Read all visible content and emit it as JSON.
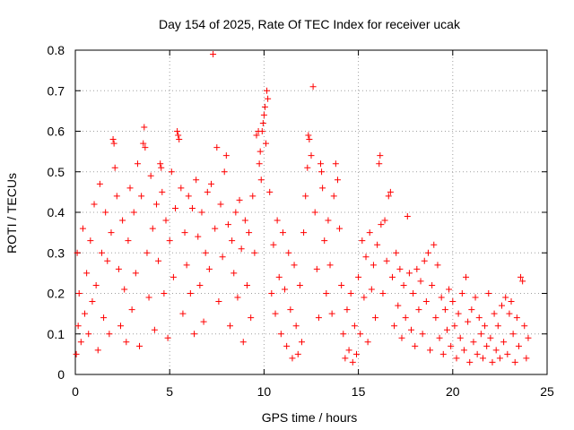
{
  "chart_data": {
    "type": "scatter",
    "title": "Day 154 of 2025, Rate Of TEC Index for receiver ucak",
    "xlabel": "GPS time / hours",
    "ylabel": "ROTI / TECUs",
    "xlim": [
      0,
      25
    ],
    "ylim": [
      0,
      0.8
    ],
    "xticks": [
      0,
      5,
      10,
      15,
      20,
      25
    ],
    "xtick_labels": [
      "0",
      "5",
      "10",
      "15",
      "20",
      "25"
    ],
    "yticks": [
      0,
      0.1,
      0.2,
      0.3,
      0.4,
      0.5,
      0.6,
      0.7,
      0.8
    ],
    "ytick_labels": [
      "0",
      "0.1",
      "0.2",
      "0.3",
      "0.4",
      "0.5",
      "0.6",
      "0.7",
      "0.8"
    ],
    "grid": true,
    "marker": "+",
    "color": "#ff0000",
    "series": [
      {
        "name": "ROTI",
        "points": [
          [
            0.05,
            0.05
          ],
          [
            0.1,
            0.3
          ],
          [
            0.15,
            0.12
          ],
          [
            0.2,
            0.2
          ],
          [
            0.3,
            0.08
          ],
          [
            0.4,
            0.36
          ],
          [
            0.5,
            0.15
          ],
          [
            0.6,
            0.25
          ],
          [
            0.7,
            0.1
          ],
          [
            0.8,
            0.33
          ],
          [
            0.9,
            0.18
          ],
          [
            1.0,
            0.42
          ],
          [
            1.1,
            0.22
          ],
          [
            1.2,
            0.06
          ],
          [
            1.3,
            0.47
          ],
          [
            1.4,
            0.3
          ],
          [
            1.5,
            0.14
          ],
          [
            1.6,
            0.4
          ],
          [
            1.7,
            0.28
          ],
          [
            1.8,
            0.1
          ],
          [
            1.9,
            0.35
          ],
          [
            2.0,
            0.58
          ],
          [
            2.05,
            0.57
          ],
          [
            2.1,
            0.51
          ],
          [
            2.2,
            0.44
          ],
          [
            2.3,
            0.26
          ],
          [
            2.4,
            0.12
          ],
          [
            2.5,
            0.38
          ],
          [
            2.6,
            0.21
          ],
          [
            2.7,
            0.08
          ],
          [
            2.8,
            0.33
          ],
          [
            2.9,
            0.46
          ],
          [
            3.0,
            0.16
          ],
          [
            3.1,
            0.4
          ],
          [
            3.2,
            0.25
          ],
          [
            3.3,
            0.52
          ],
          [
            3.4,
            0.07
          ],
          [
            3.5,
            0.44
          ],
          [
            3.6,
            0.57
          ],
          [
            3.65,
            0.61
          ],
          [
            3.7,
            0.56
          ],
          [
            3.8,
            0.3
          ],
          [
            3.9,
            0.19
          ],
          [
            4.0,
            0.49
          ],
          [
            4.1,
            0.36
          ],
          [
            4.2,
            0.11
          ],
          [
            4.3,
            0.42
          ],
          [
            4.4,
            0.28
          ],
          [
            4.5,
            0.52
          ],
          [
            4.55,
            0.51
          ],
          [
            4.6,
            0.45
          ],
          [
            4.7,
            0.2
          ],
          [
            4.8,
            0.38
          ],
          [
            4.9,
            0.09
          ],
          [
            5.0,
            0.33
          ],
          [
            5.1,
            0.5
          ],
          [
            5.2,
            0.24
          ],
          [
            5.3,
            0.41
          ],
          [
            5.4,
            0.6
          ],
          [
            5.45,
            0.59
          ],
          [
            5.5,
            0.58
          ],
          [
            5.6,
            0.46
          ],
          [
            5.7,
            0.15
          ],
          [
            5.8,
            0.35
          ],
          [
            5.9,
            0.27
          ],
          [
            6.0,
            0.44
          ],
          [
            6.1,
            0.2
          ],
          [
            6.2,
            0.41
          ],
          [
            6.3,
            0.1
          ],
          [
            6.4,
            0.48
          ],
          [
            6.5,
            0.34
          ],
          [
            6.6,
            0.22
          ],
          [
            6.7,
            0.4
          ],
          [
            6.8,
            0.13
          ],
          [
            6.9,
            0.3
          ],
          [
            7.0,
            0.45
          ],
          [
            7.1,
            0.26
          ],
          [
            7.2,
            0.47
          ],
          [
            7.3,
            0.79
          ],
          [
            7.4,
            0.36
          ],
          [
            7.5,
            0.56
          ],
          [
            7.6,
            0.18
          ],
          [
            7.7,
            0.42
          ],
          [
            7.8,
            0.29
          ],
          [
            7.9,
            0.5
          ],
          [
            8.0,
            0.54
          ],
          [
            8.1,
            0.37
          ],
          [
            8.2,
            0.12
          ],
          [
            8.3,
            0.33
          ],
          [
            8.4,
            0.25
          ],
          [
            8.5,
            0.4
          ],
          [
            8.6,
            0.19
          ],
          [
            8.7,
            0.43
          ],
          [
            8.8,
            0.31
          ],
          [
            8.9,
            0.08
          ],
          [
            9.0,
            0.38
          ],
          [
            9.1,
            0.22
          ],
          [
            9.2,
            0.35
          ],
          [
            9.3,
            0.14
          ],
          [
            9.4,
            0.44
          ],
          [
            9.5,
            0.3
          ],
          [
            9.6,
            0.59
          ],
          [
            9.7,
            0.6
          ],
          [
            9.75,
            0.52
          ],
          [
            9.8,
            0.55
          ],
          [
            9.85,
            0.48
          ],
          [
            9.9,
            0.6
          ],
          [
            9.95,
            0.62
          ],
          [
            10.0,
            0.64
          ],
          [
            10.05,
            0.66
          ],
          [
            10.1,
            0.57
          ],
          [
            10.15,
            0.7
          ],
          [
            10.2,
            0.68
          ],
          [
            10.3,
            0.45
          ],
          [
            10.4,
            0.2
          ],
          [
            10.5,
            0.32
          ],
          [
            10.6,
            0.15
          ],
          [
            10.7,
            0.38
          ],
          [
            10.8,
            0.24
          ],
          [
            10.9,
            0.1
          ],
          [
            11.0,
            0.35
          ],
          [
            11.1,
            0.21
          ],
          [
            11.2,
            0.07
          ],
          [
            11.3,
            0.3
          ],
          [
            11.4,
            0.16
          ],
          [
            11.5,
            0.04
          ],
          [
            11.6,
            0.27
          ],
          [
            11.7,
            0.12
          ],
          [
            11.8,
            0.05
          ],
          [
            11.9,
            0.22
          ],
          [
            12.0,
            0.08
          ],
          [
            12.1,
            0.35
          ],
          [
            12.2,
            0.44
          ],
          [
            12.3,
            0.51
          ],
          [
            12.35,
            0.59
          ],
          [
            12.4,
            0.58
          ],
          [
            12.5,
            0.54
          ],
          [
            12.6,
            0.71
          ],
          [
            12.7,
            0.4
          ],
          [
            12.8,
            0.26
          ],
          [
            12.9,
            0.14
          ],
          [
            13.0,
            0.52
          ],
          [
            13.05,
            0.5
          ],
          [
            13.1,
            0.46
          ],
          [
            13.2,
            0.33
          ],
          [
            13.3,
            0.2
          ],
          [
            13.4,
            0.38
          ],
          [
            13.5,
            0.27
          ],
          [
            13.6,
            0.15
          ],
          [
            13.7,
            0.44
          ],
          [
            13.8,
            0.52
          ],
          [
            13.9,
            0.48
          ],
          [
            14.0,
            0.36
          ],
          [
            14.1,
            0.22
          ],
          [
            14.2,
            0.1
          ],
          [
            14.3,
            0.04
          ],
          [
            14.4,
            0.16
          ],
          [
            14.5,
            0.06
          ],
          [
            14.6,
            0.2
          ],
          [
            14.7,
            0.03
          ],
          [
            14.8,
            0.12
          ],
          [
            14.9,
            0.05
          ],
          [
            15.0,
            0.24
          ],
          [
            15.1,
            0.1
          ],
          [
            15.2,
            0.33
          ],
          [
            15.3,
            0.19
          ],
          [
            15.4,
            0.29
          ],
          [
            15.5,
            0.08
          ],
          [
            15.6,
            0.35
          ],
          [
            15.7,
            0.21
          ],
          [
            15.8,
            0.27
          ],
          [
            15.9,
            0.14
          ],
          [
            16.0,
            0.32
          ],
          [
            16.1,
            0.52
          ],
          [
            16.15,
            0.54
          ],
          [
            16.2,
            0.37
          ],
          [
            16.3,
            0.2
          ],
          [
            16.4,
            0.38
          ],
          [
            16.5,
            0.28
          ],
          [
            16.6,
            0.44
          ],
          [
            16.7,
            0.45
          ],
          [
            16.8,
            0.24
          ],
          [
            16.9,
            0.12
          ],
          [
            17.0,
            0.3
          ],
          [
            17.1,
            0.17
          ],
          [
            17.2,
            0.26
          ],
          [
            17.3,
            0.09
          ],
          [
            17.4,
            0.22
          ],
          [
            17.5,
            0.14
          ],
          [
            17.6,
            0.39
          ],
          [
            17.7,
            0.25
          ],
          [
            17.8,
            0.11
          ],
          [
            17.9,
            0.2
          ],
          [
            18.0,
            0.07
          ],
          [
            18.1,
            0.26
          ],
          [
            18.2,
            0.16
          ],
          [
            18.3,
            0.23
          ],
          [
            18.4,
            0.1
          ],
          [
            18.5,
            0.28
          ],
          [
            18.6,
            0.18
          ],
          [
            18.7,
            0.3
          ],
          [
            18.8,
            0.06
          ],
          [
            18.9,
            0.22
          ],
          [
            19.0,
            0.32
          ],
          [
            19.1,
            0.14
          ],
          [
            19.2,
            0.27
          ],
          [
            19.3,
            0.09
          ],
          [
            19.4,
            0.19
          ],
          [
            19.5,
            0.05
          ],
          [
            19.6,
            0.16
          ],
          [
            19.7,
            0.11
          ],
          [
            19.8,
            0.21
          ],
          [
            19.9,
            0.07
          ],
          [
            20.0,
            0.18
          ],
          [
            20.1,
            0.12
          ],
          [
            20.2,
            0.04
          ],
          [
            20.3,
            0.15
          ],
          [
            20.4,
            0.09
          ],
          [
            20.5,
            0.2
          ],
          [
            20.6,
            0.06
          ],
          [
            20.7,
            0.24
          ],
          [
            20.8,
            0.13
          ],
          [
            20.9,
            0.03
          ],
          [
            21.0,
            0.16
          ],
          [
            21.1,
            0.08
          ],
          [
            21.2,
            0.19
          ],
          [
            21.3,
            0.05
          ],
          [
            21.4,
            0.14
          ],
          [
            21.5,
            0.1
          ],
          [
            21.6,
            0.04
          ],
          [
            21.7,
            0.12
          ],
          [
            21.8,
            0.07
          ],
          [
            21.9,
            0.2
          ],
          [
            22.0,
            0.09
          ],
          [
            22.1,
            0.03
          ],
          [
            22.2,
            0.15
          ],
          [
            22.3,
            0.06
          ],
          [
            22.4,
            0.12
          ],
          [
            22.5,
            0.04
          ],
          [
            22.6,
            0.17
          ],
          [
            22.7,
            0.08
          ],
          [
            22.8,
            0.19
          ],
          [
            22.9,
            0.05
          ],
          [
            23.0,
            0.15
          ],
          [
            23.1,
            0.18
          ],
          [
            23.2,
            0.1
          ],
          [
            23.3,
            0.03
          ],
          [
            23.4,
            0.14
          ],
          [
            23.5,
            0.07
          ],
          [
            23.6,
            0.24
          ],
          [
            23.7,
            0.23
          ],
          [
            23.8,
            0.12
          ],
          [
            23.9,
            0.04
          ],
          [
            24.0,
            0.09
          ]
        ]
      }
    ]
  }
}
